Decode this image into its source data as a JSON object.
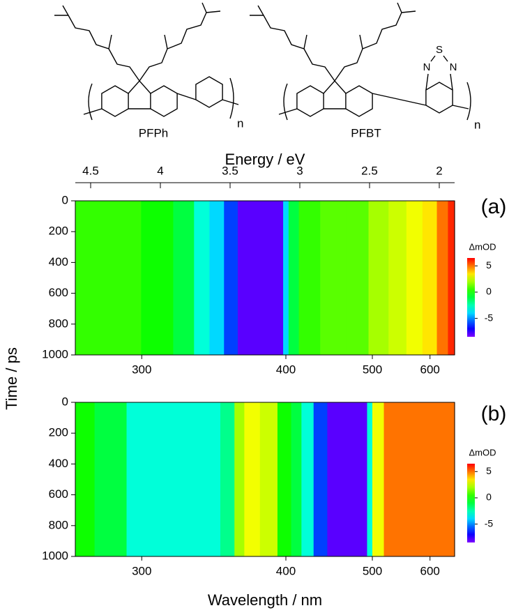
{
  "structures": [
    {
      "label": "PFPh",
      "repeat": "n"
    },
    {
      "label": "PFBT",
      "repeat": "n",
      "atoms": [
        "S",
        "N",
        "N"
      ]
    }
  ],
  "chart_data": [
    {
      "type": "heatmap",
      "panel": "(a)",
      "x2label": "Energy / eV",
      "ylabel": "Time / ps",
      "x": [
        270,
        290,
        310,
        325,
        335,
        345,
        355,
        365,
        380,
        395,
        400,
        405,
        420,
        450,
        480,
        510,
        540,
        570,
        600,
        630,
        650
      ],
      "values": [
        0.5,
        0.5,
        0,
        -1,
        -3,
        -4,
        -6,
        -8,
        -8,
        -8,
        -4,
        -1,
        0.5,
        1,
        1,
        2,
        2.5,
        3,
        3.5,
        5,
        6
      ],
      "xscale": "reciprocal",
      "xlim": [
        269,
        656
      ],
      "xticks": [
        300,
        400,
        500,
        600
      ],
      "x2lim": [
        4.61,
        1.89
      ],
      "x2ticks": [
        4.5,
        4.0,
        3.5,
        3.0,
        2.5,
        2.0
      ],
      "ylim": [
        0,
        1000
      ],
      "yticks": [
        0,
        200,
        400,
        600,
        800,
        1000
      ],
      "colorbar_label": "ΔmOD",
      "zlim": [
        -8.5,
        6.5
      ],
      "zticks": [
        5,
        0,
        -5
      ]
    },
    {
      "type": "heatmap",
      "panel": "(b)",
      "xlabel": "Wavelength / nm",
      "x": [
        270,
        285,
        300,
        320,
        340,
        355,
        360,
        370,
        385,
        400,
        410,
        420,
        435,
        450,
        470,
        490,
        495,
        505,
        530,
        570,
        620,
        650
      ],
      "values": [
        0,
        -1,
        -3,
        -3,
        -3,
        -2,
        2,
        3,
        2.5,
        0,
        -1,
        -3,
        -6,
        -8,
        -8,
        -8,
        -3,
        3,
        5,
        5,
        5,
        5
      ],
      "xscale": "reciprocal",
      "xlim": [
        269,
        656
      ],
      "xticks": [
        300,
        400,
        500,
        600
      ],
      "ylim": [
        0,
        1000
      ],
      "yticks": [
        0,
        200,
        400,
        600,
        800,
        1000
      ],
      "colorbar_label": "ΔmOD",
      "zlim": [
        -8.5,
        6.5
      ],
      "zticks": [
        5,
        0,
        -5
      ]
    }
  ]
}
